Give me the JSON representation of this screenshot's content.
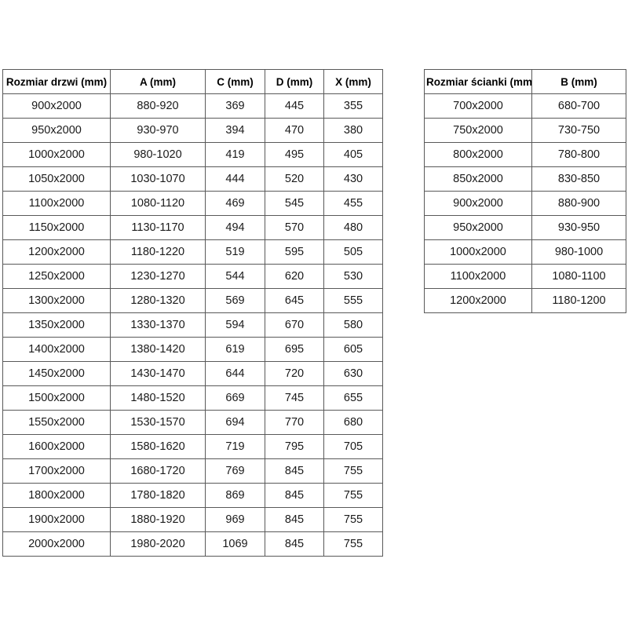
{
  "colors": {
    "border": "#595959",
    "text": "#000000",
    "background": "#ffffff"
  },
  "tables": [
    {
      "name": "door-size-table",
      "headers": [
        "Rozmiar drzwi (mm)",
        "A (mm)",
        "C (mm)",
        "D (mm)",
        "X (mm)"
      ],
      "rows": [
        [
          "900x2000",
          "880-920",
          "369",
          "445",
          "355"
        ],
        [
          "950x2000",
          "930-970",
          "394",
          "470",
          "380"
        ],
        [
          "1000x2000",
          "980-1020",
          "419",
          "495",
          "405"
        ],
        [
          "1050x2000",
          "1030-1070",
          "444",
          "520",
          "430"
        ],
        [
          "1100x2000",
          "1080-1120",
          "469",
          "545",
          "455"
        ],
        [
          "1150x2000",
          "1130-1170",
          "494",
          "570",
          "480"
        ],
        [
          "1200x2000",
          "1180-1220",
          "519",
          "595",
          "505"
        ],
        [
          "1250x2000",
          "1230-1270",
          "544",
          "620",
          "530"
        ],
        [
          "1300x2000",
          "1280-1320",
          "569",
          "645",
          "555"
        ],
        [
          "1350x2000",
          "1330-1370",
          "594",
          "670",
          "580"
        ],
        [
          "1400x2000",
          "1380-1420",
          "619",
          "695",
          "605"
        ],
        [
          "1450x2000",
          "1430-1470",
          "644",
          "720",
          "630"
        ],
        [
          "1500x2000",
          "1480-1520",
          "669",
          "745",
          "655"
        ],
        [
          "1550x2000",
          "1530-1570",
          "694",
          "770",
          "680"
        ],
        [
          "1600x2000",
          "1580-1620",
          "719",
          "795",
          "705"
        ],
        [
          "1700x2000",
          "1680-1720",
          "769",
          "845",
          "755"
        ],
        [
          "1800x2000",
          "1780-1820",
          "869",
          "845",
          "755"
        ],
        [
          "1900x2000",
          "1880-1920",
          "969",
          "845",
          "755"
        ],
        [
          "2000x2000",
          "1980-2020",
          "1069",
          "845",
          "755"
        ]
      ]
    },
    {
      "name": "wall-size-table",
      "headers": [
        "Rozmiar ścianki (mm)",
        "B (mm)"
      ],
      "rows": [
        [
          "700x2000",
          "680-700"
        ],
        [
          "750x2000",
          "730-750"
        ],
        [
          "800x2000",
          "780-800"
        ],
        [
          "850x2000",
          "830-850"
        ],
        [
          "900x2000",
          "880-900"
        ],
        [
          "950x2000",
          "930-950"
        ],
        [
          "1000x2000",
          "980-1000"
        ],
        [
          "1100x2000",
          "1080-1100"
        ],
        [
          "1200x2000",
          "1180-1200"
        ]
      ]
    }
  ]
}
